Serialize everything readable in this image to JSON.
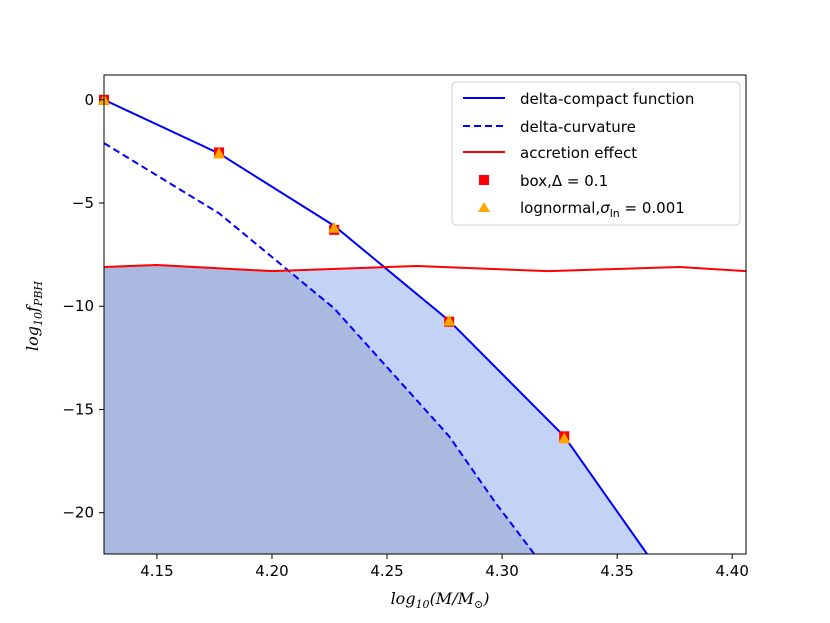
{
  "chart_data": {
    "type": "line",
    "title": "",
    "xlabel": "log₁₀(M/M⊙)",
    "ylabel": "log₁₀f_PBH",
    "xlim": [
      4.127,
      4.406
    ],
    "ylim": [
      -22,
      1.2
    ],
    "xticks": [
      4.15,
      4.2,
      4.25,
      4.3,
      4.35,
      4.4
    ],
    "xtick_labels": [
      "4.15",
      "4.20",
      "4.25",
      "4.30",
      "4.35",
      "4.40"
    ],
    "yticks": [
      0,
      -5,
      -10,
      -15,
      -20
    ],
    "ytick_labels": [
      "0",
      "−5",
      "−10",
      "−15",
      "−20"
    ],
    "grid": false,
    "legend_position": "top-right",
    "series": [
      {
        "name": "delta-compact function",
        "style": "solid",
        "color": "#0000ff",
        "x": [
          4.127,
          4.177,
          4.227,
          4.277,
          4.327,
          4.363
        ],
        "y": [
          0.0,
          -2.6,
          -6.1,
          -10.7,
          -16.3,
          -22.0
        ]
      },
      {
        "name": "delta-curvature",
        "style": "dashed",
        "color": "#0000ff",
        "x": [
          4.127,
          4.177,
          4.227,
          4.277,
          4.297,
          4.314
        ],
        "y": [
          -2.1,
          -5.5,
          -10.1,
          -16.3,
          -19.5,
          -22.0
        ]
      },
      {
        "name": "accretion effect",
        "style": "solid",
        "color": "#ff0000",
        "x": [
          4.127,
          4.15,
          4.2,
          4.25,
          4.263,
          4.32,
          4.377,
          4.406
        ],
        "y": [
          -8.1,
          -8.0,
          -8.3,
          -8.1,
          -8.05,
          -8.3,
          -8.1,
          -8.3
        ]
      },
      {
        "name": "box,Δ = 0.1",
        "type": "scatter",
        "marker": "square",
        "color": "#ff0000",
        "x": [
          4.127,
          4.177,
          4.227,
          4.277,
          4.327
        ],
        "y": [
          0.0,
          -2.55,
          -6.3,
          -10.75,
          -16.3
        ]
      },
      {
        "name": "lognormal,σln = 0.001",
        "type": "scatter",
        "marker": "triangle",
        "color": "#ffa500",
        "x": [
          4.127,
          4.177,
          4.227,
          4.277,
          4.327
        ],
        "y": [
          0.0,
          -2.6,
          -6.2,
          -10.7,
          -16.4
        ]
      }
    ],
    "fills": [
      {
        "description": "region below accretion effect line, bounded by delta-curvature",
        "color": "#aab9e0"
      },
      {
        "description": "region between delta-curvature and delta-compact function",
        "color": "#c3d3f6"
      }
    ]
  },
  "legend": {
    "entries": [
      {
        "label": "delta-compact function"
      },
      {
        "label": "delta-curvature"
      },
      {
        "label": "accretion effect"
      },
      {
        "label_main": "box,",
        "label_math": "Δ = 0.1"
      },
      {
        "label_main": "lognormal,",
        "label_sigma": "σ",
        "label_sub": "ln",
        "label_math": " = 0.001"
      }
    ]
  },
  "labels": {
    "x_main": "log",
    "x_sub": "10",
    "x_rest": "(M/M",
    "x_sun_sub": "⊙",
    "x_close": ")",
    "y_main": "log",
    "y_sub": "10",
    "y_f": "f",
    "y_f_sub": "PBH"
  }
}
